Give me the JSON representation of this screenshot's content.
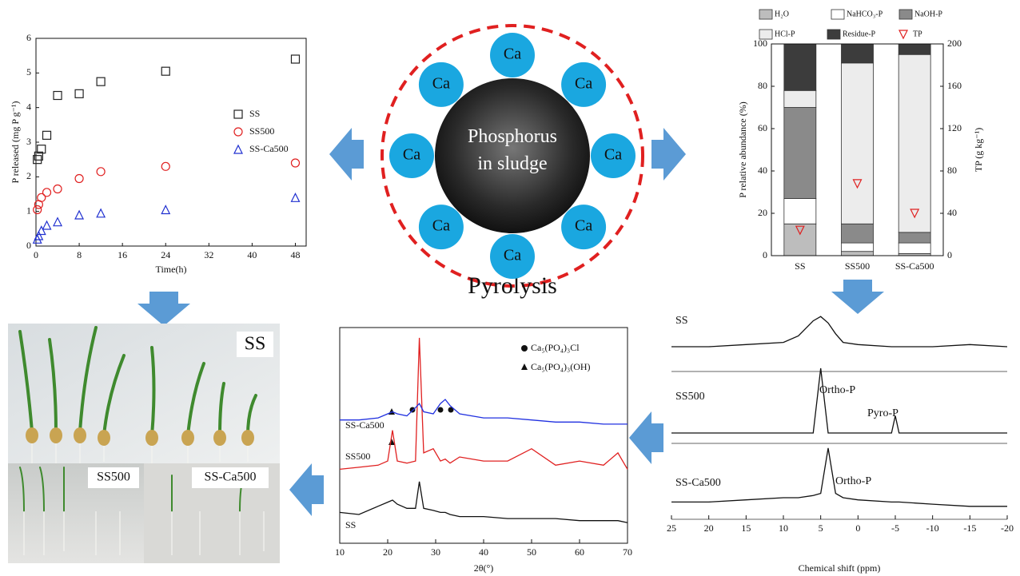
{
  "chart_data": [
    {
      "type": "scatter",
      "xlabel": "Time(h)",
      "ylabel": "P released (mg P g⁻¹)",
      "x": [
        0.25,
        0.5,
        1,
        2,
        4,
        8,
        12,
        24,
        48
      ],
      "series": [
        {
          "name": "SS",
          "color": "#222222",
          "marker": "square",
          "values": [
            2.5,
            2.6,
            2.8,
            3.2,
            4.35,
            4.4,
            4.75,
            5.05,
            5.4
          ]
        },
        {
          "name": "SS500",
          "color": "#e02020",
          "marker": "circle",
          "values": [
            1.05,
            1.2,
            1.4,
            1.55,
            1.65,
            1.95,
            2.15,
            2.3,
            2.4
          ]
        },
        {
          "name": "SS-Ca500",
          "color": "#2030d0",
          "marker": "triangle",
          "values": [
            0.2,
            0.3,
            0.45,
            0.6,
            0.7,
            0.9,
            0.95,
            1.05,
            1.4
          ]
        }
      ],
      "xlim": [
        0,
        50
      ],
      "xticks": [
        0,
        8,
        16,
        24,
        32,
        40,
        48
      ],
      "ylim": [
        0,
        6
      ],
      "yticks": [
        0,
        1,
        2,
        3,
        4,
        5,
        6
      ]
    },
    {
      "type": "bar",
      "ylabel": "P relative abundance (%)",
      "y2label": "TP (g kg⁻¹)",
      "categories": [
        "SS",
        "SS500",
        "SS-Ca500"
      ],
      "series": [
        {
          "name": "H₂O",
          "color": "#bdbdbd",
          "values": [
            15,
            2,
            1
          ]
        },
        {
          "name": "NaHCO₃-P",
          "color": "#ffffff",
          "values": [
            12,
            4,
            5
          ]
        },
        {
          "name": "NaOH-P",
          "color": "#8a8a8a",
          "values": [
            43,
            9,
            5
          ]
        },
        {
          "name": "HCl-P",
          "color": "#ececec",
          "values": [
            8,
            76,
            84
          ]
        },
        {
          "name": "Residue-P",
          "color": "#3c3c3c",
          "values": [
            22,
            9,
            5
          ]
        },
        {
          "name": "TP",
          "color": "#e02020",
          "axis": "y2",
          "marker": "triangle-down",
          "values": [
            24,
            68,
            40
          ]
        }
      ],
      "ylim": [
        0,
        100
      ],
      "yticks": [
        0,
        20,
        40,
        60,
        80,
        100
      ],
      "y2lim": [
        0,
        200
      ],
      "y2ticks": [
        0,
        40,
        80,
        120,
        160,
        200
      ]
    },
    {
      "type": "line",
      "xlabel": "2θ(°)",
      "legend": [
        "Ca₅(PO₄)₃Cl",
        "Ca₅(PO₄)₃(OH)"
      ],
      "x": [
        10,
        14,
        18,
        20,
        21,
        22,
        24,
        25.8,
        26.6,
        27.5,
        29.5,
        31,
        32,
        33,
        35,
        40,
        45,
        50,
        55,
        60,
        65,
        68,
        70
      ],
      "series": [
        {
          "name": "SS",
          "color": "#111111",
          "values": [
            15,
            14,
            18,
            20,
            21,
            19,
            17,
            17,
            30,
            17,
            16,
            15,
            15,
            14,
            13,
            13,
            12,
            12,
            12,
            11,
            11,
            11,
            10
          ]
        },
        {
          "name": "SS500",
          "color": "#e02020",
          "values": [
            36,
            37,
            38,
            40,
            55,
            40,
            39,
            40,
            100,
            44,
            46,
            40,
            41,
            39,
            42,
            40,
            40,
            46,
            38,
            40,
            38,
            44,
            36
          ]
        },
        {
          "name": "SS-Ca500",
          "color": "#2030e0",
          "values": [
            60,
            60,
            61,
            63,
            64,
            63,
            62,
            66,
            68,
            64,
            63,
            68,
            70,
            67,
            63,
            61,
            61,
            60,
            59,
            59,
            58,
            58,
            58
          ]
        }
      ],
      "xlim": [
        10,
        70
      ],
      "xticks": [
        10,
        20,
        30,
        40,
        50,
        60,
        70
      ],
      "ylim": [
        0,
        105
      ]
    },
    {
      "type": "line",
      "xlabel": "Chemical shift (ppm)",
      "annotations": [
        "Ortho-P",
        "Pyro-P",
        "Ortho-P"
      ],
      "x": [
        25,
        20,
        15,
        10,
        8,
        6,
        5,
        4,
        3,
        2,
        0,
        -4.5,
        -5,
        -5.5,
        -10,
        -15,
        -20
      ],
      "series": [
        {
          "name": "SS",
          "color": "#111111",
          "values": [
            80,
            80,
            81,
            82,
            85,
            92,
            94,
            91,
            86,
            82,
            81,
            80,
            80,
            80,
            80,
            81,
            80
          ]
        },
        {
          "name": "SS500",
          "color": "#111111",
          "values": [
            40,
            40,
            40,
            40,
            40,
            40,
            70,
            40,
            40,
            40,
            40,
            40,
            48,
            40,
            40,
            40,
            40
          ]
        },
        {
          "name": "SS-Ca500",
          "color": "#111111",
          "values": [
            8,
            8,
            9,
            10,
            10,
            11,
            12,
            33,
            12,
            10,
            9,
            8,
            8,
            8,
            7,
            6,
            6
          ]
        }
      ],
      "xlim": [
        25,
        -20
      ],
      "xticks": [
        25,
        20,
        15,
        10,
        5,
        0,
        -5,
        -10,
        -15,
        -20
      ],
      "ylim": [
        0,
        100
      ]
    }
  ],
  "diagram": {
    "center": "Phosphorus in sludge",
    "element": "Ca",
    "process": "Pyrolysis"
  },
  "photo_labels": [
    "SS",
    "SS500",
    "SS-Ca500"
  ]
}
